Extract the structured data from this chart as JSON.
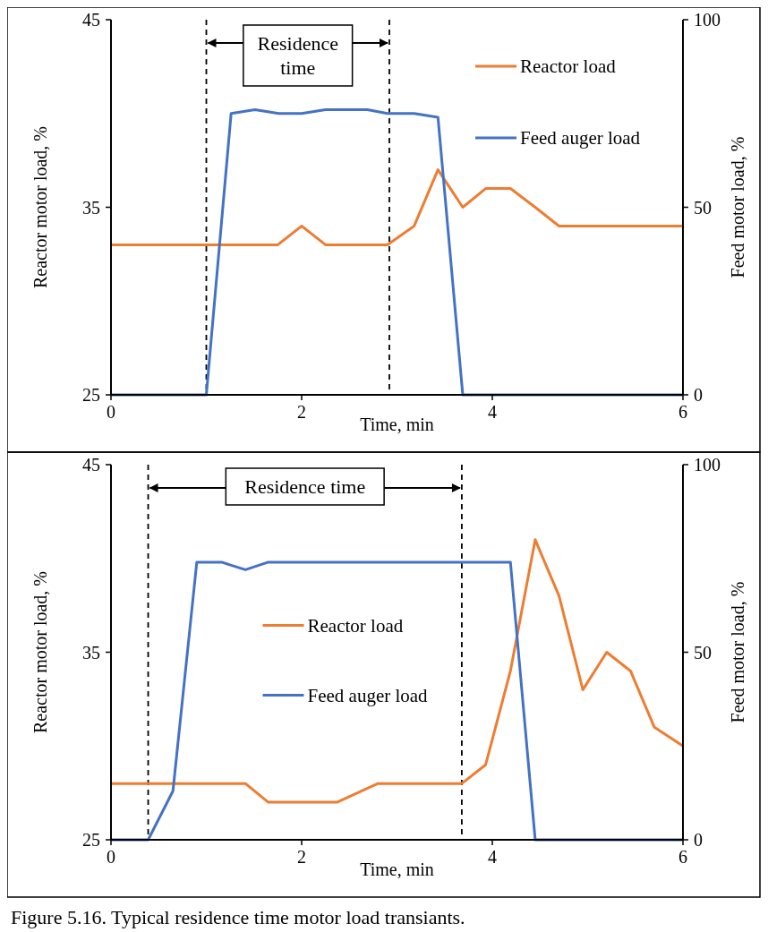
{
  "chart_data": [
    {
      "type": "line",
      "xlabel": "Time, min",
      "ylabel": "Reactor motor load, %",
      "y2label": "Feed motor load, %",
      "xlim": [
        0,
        6
      ],
      "xticks": [
        0,
        2,
        4,
        6
      ],
      "ylim": [
        25,
        45
      ],
      "yticks": [
        25,
        35,
        45
      ],
      "y2lim": [
        0,
        100
      ],
      "y2ticks": [
        0,
        50,
        100
      ],
      "legend": "top right",
      "grid": false,
      "marker": "none",
      "line_style": "solid",
      "series": [
        {
          "name": "Reactor load",
          "color": "#ed7d31",
          "x": [
            0,
            1.75,
            2,
            2.25,
            2.9,
            3.18,
            3.43,
            3.69,
            3.93,
            4.19,
            4.45,
            4.7,
            6
          ],
          "values": [
            33,
            33,
            34,
            33,
            33,
            34,
            37,
            35,
            36,
            36,
            35,
            34,
            34
          ]
        },
        {
          "name": "Feed auger load",
          "color": "#4472c4",
          "axis": "y2",
          "x": [
            0,
            1,
            1.26,
            1.51,
            1.76,
            2,
            2.25,
            2.69,
            2.9,
            3.18,
            3.43,
            3.69,
            6
          ],
          "values": [
            0,
            0,
            75,
            76,
            75,
            75,
            76,
            76,
            75,
            75,
            74,
            0,
            0
          ]
        }
      ],
      "ref_lines": [
        {
          "axis": "x",
          "value": 1,
          "color": "#000000",
          "line_style": "dashed"
        },
        {
          "axis": "x",
          "value": 2.92,
          "color": "#000000",
          "line_style": "dashed"
        }
      ],
      "annotations": [
        "Residence time"
      ]
    },
    {
      "type": "line",
      "xlabel": "Time, min",
      "ylabel": "Reactor motor load, %",
      "y2label": "Feed motor load, %",
      "xlim": [
        0,
        6
      ],
      "xticks": [
        0,
        2,
        4,
        6
      ],
      "ylim": [
        25,
        45
      ],
      "yticks": [
        25,
        35,
        45
      ],
      "y2lim": [
        0,
        100
      ],
      "y2ticks": [
        0,
        50,
        100
      ],
      "legend": "center",
      "grid": false,
      "marker": "none",
      "line_style": "solid",
      "series": [
        {
          "name": "Reactor load",
          "color": "#ed7d31",
          "x": [
            0,
            1.41,
            1.65,
            2.37,
            2.8,
            3.68,
            3.93,
            4.19,
            4.45,
            4.7,
            4.95,
            5.2,
            5.45,
            5.7,
            6
          ],
          "values": [
            28,
            28,
            27,
            27,
            28,
            28,
            29,
            34,
            41,
            38,
            33,
            35,
            34,
            31,
            30
          ]
        },
        {
          "name": "Feed auger load",
          "color": "#4472c4",
          "axis": "y2",
          "x": [
            0,
            0.39,
            0.65,
            0.9,
            1.16,
            1.41,
            1.65,
            4.19,
            4.45,
            6
          ],
          "values": [
            0,
            0,
            13,
            74,
            74,
            72,
            74,
            74,
            0,
            0
          ]
        }
      ],
      "ref_lines": [
        {
          "axis": "x",
          "value": 0.39,
          "color": "#000000",
          "line_style": "dashed"
        },
        {
          "axis": "x",
          "value": 3.68,
          "color": "#000000",
          "line_style": "dashed"
        }
      ],
      "annotations": [
        "Residence time",
        "Figure 5.16. Typical residence time motor load transiants."
      ]
    }
  ]
}
